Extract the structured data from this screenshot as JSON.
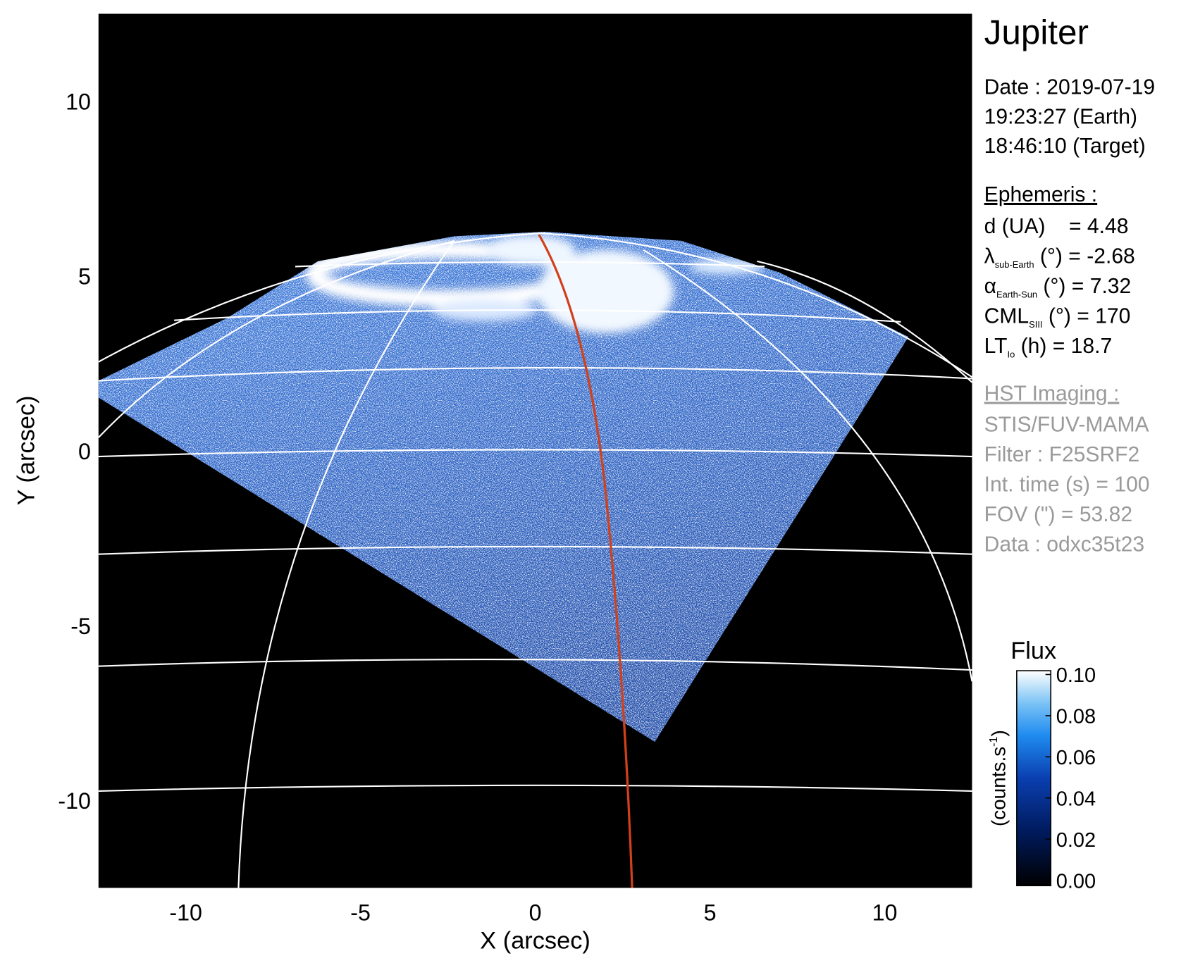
{
  "chart_data": {
    "type": "image",
    "title": "Jupiter",
    "x_label": "X (arcsec)",
    "y_label": "Y (arcsec)",
    "xlim": [
      -12.5,
      12.5
    ],
    "ylim": [
      -12.5,
      12.5
    ],
    "xticks": [
      -10,
      -5,
      0,
      5,
      10
    ],
    "yticks": [
      -10,
      -5,
      0,
      5,
      10
    ],
    "colorbar": {
      "title": "Flux",
      "label": {
        "text": "(counts.s",
        "superscript": "-1",
        "suffix": ")"
      },
      "lim": [
        0,
        0.1
      ],
      "ticks": [
        {
          "value": 0,
          "label": "0.00"
        },
        {
          "value": 0.02,
          "label": "0.02"
        },
        {
          "value": 0.04,
          "label": "0.04"
        },
        {
          "value": 0.06,
          "label": "0.06"
        },
        {
          "value": 0.08,
          "label": "0.08"
        },
        {
          "value": 0.1,
          "label": "0.10"
        }
      ]
    },
    "info": {
      "date": [
        "Date : 2019-07-19",
        "19:23:27 (Earth)",
        "18:46:10 (Target)"
      ],
      "ephemeris_title": "Ephemeris :",
      "ephemeris": [
        {
          "text": "d (UA)    = 4.48"
        },
        {
          "symbol": "λ",
          "subscript": "sub-Earth",
          "text": " (°) = -2.68"
        },
        {
          "symbol": "α",
          "subscript": "Earth-Sun",
          "text": " (°) = 7.32"
        },
        {
          "symbol": "CML",
          "subscript": "SIII",
          "text": " (°) = 170"
        },
        {
          "symbol": "LT",
          "subscript": "Io",
          "text": " (h) = 18.7"
        }
      ],
      "imaging_title": "HST Imaging :",
      "imaging": [
        "STIS/FUV-MAMA",
        "Filter : F25SRF2",
        "Int. time (s) = 100",
        "FOV (\") = 53.82",
        "Data : odxc35t23"
      ]
    }
  }
}
